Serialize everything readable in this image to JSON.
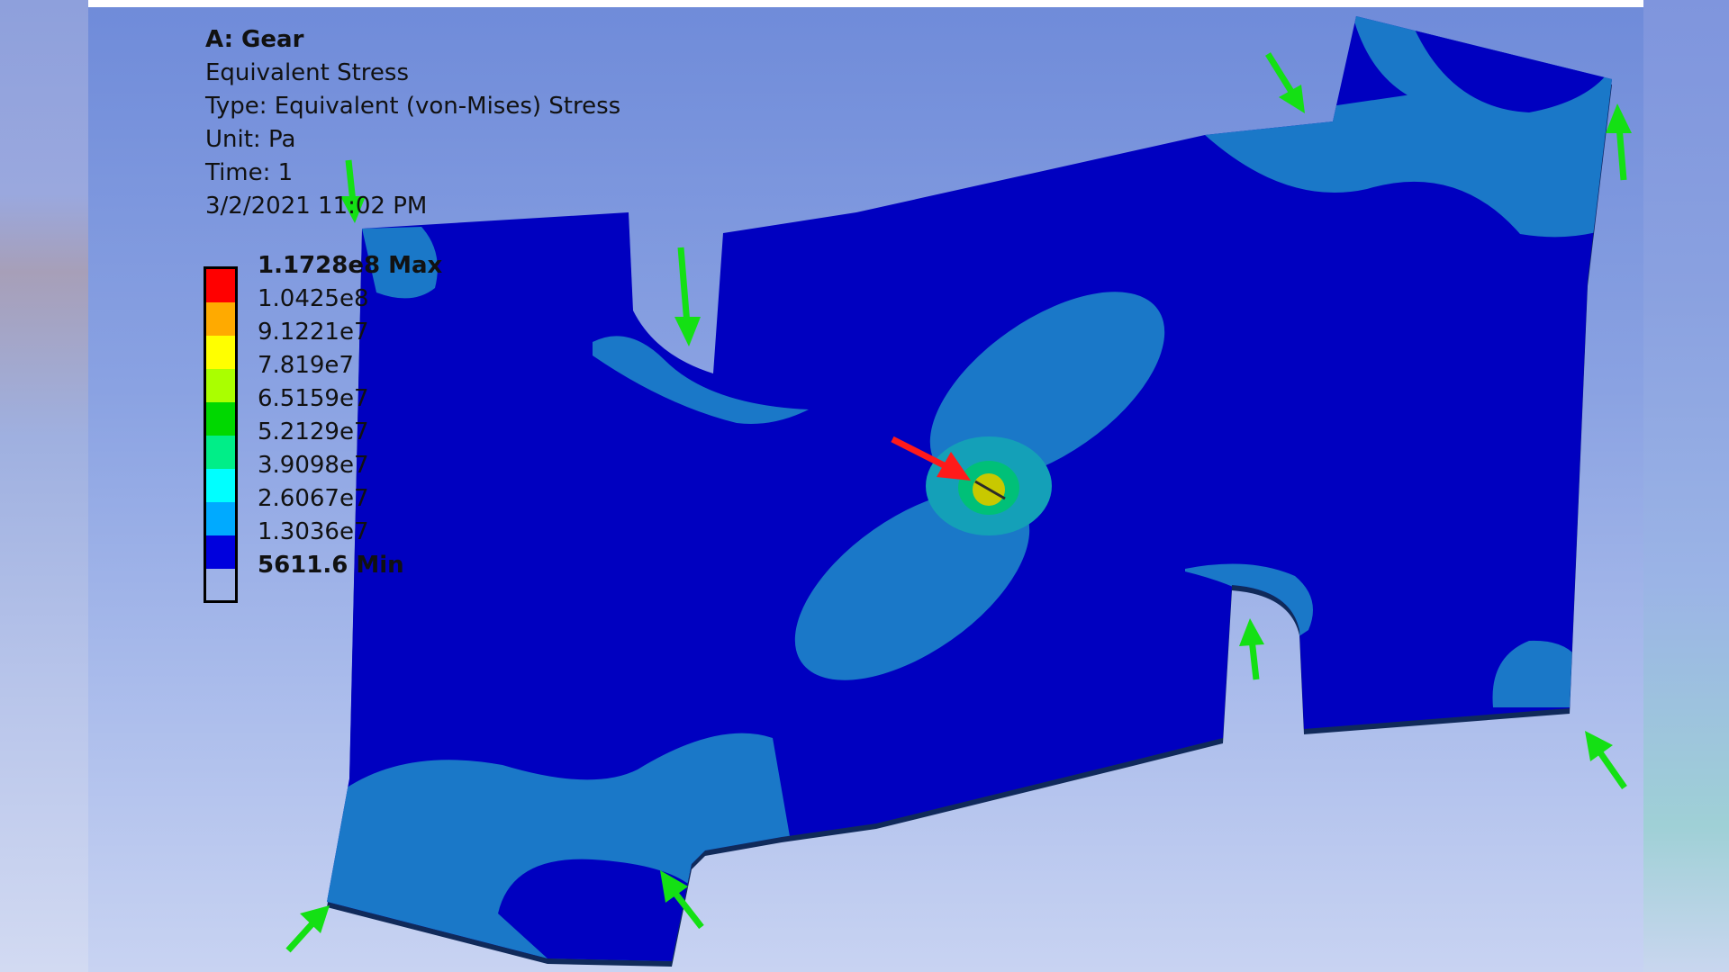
{
  "info": {
    "title": "A: Gear",
    "result_name": "Equivalent Stress",
    "type_line": "Type: Equivalent (von-Mises) Stress",
    "unit_line": "Unit: Pa",
    "time_line": "Time: 1",
    "timestamp": "3/2/2021 11:02 PM"
  },
  "legend": [
    {
      "label": "1.1728e8 Max",
      "color": "#ff0000",
      "bold": true
    },
    {
      "label": "1.0425e8",
      "color": "#ffaa00",
      "bold": false
    },
    {
      "label": "9.1221e7",
      "color": "#ffff00",
      "bold": false
    },
    {
      "label": "7.819e7",
      "color": "#aaff00",
      "bold": false
    },
    {
      "label": "6.5159e7",
      "color": "#00d800",
      "bold": false
    },
    {
      "label": "5.2129e7",
      "color": "#00ee88",
      "bold": false
    },
    {
      "label": "3.9098e7",
      "color": "#00ffff",
      "bold": false
    },
    {
      "label": "2.6067e7",
      "color": "#00aaff",
      "bold": false
    },
    {
      "label": "1.3036e7",
      "color": "#0000dd",
      "bold": false
    },
    {
      "label": "5611.6 Min",
      "color": "#0000dd",
      "bold": true
    }
  ],
  "colors": {
    "low_stress": "#0000c0",
    "band_1": "#1a78c8",
    "band_2": "#14a0b8",
    "mid_stress": "#00c078",
    "high_stress": "#c8c800",
    "load_arrow": "#ff1a1a",
    "support_arrow": "#14e014"
  }
}
